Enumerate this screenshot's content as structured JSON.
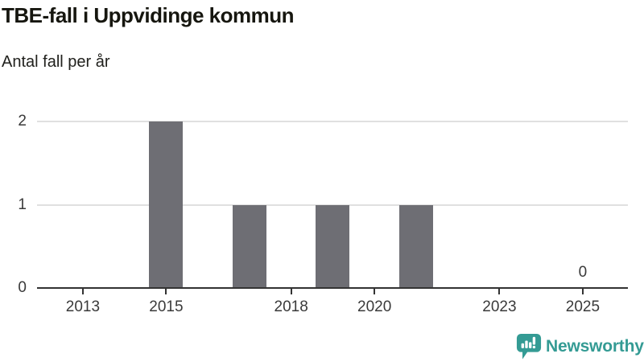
{
  "header": {
    "title": "TBE-fall i Uppvidinge kommun",
    "subtitle": "Antal fall per år"
  },
  "chart_data": {
    "type": "bar",
    "title": "TBE-fall i Uppvidinge kommun",
    "subtitle": "Antal fall per år",
    "categories": [
      "2012",
      "2013",
      "2014",
      "2015",
      "2016",
      "2017",
      "2018",
      "2019",
      "2020",
      "2021",
      "2022",
      "2023",
      "2024",
      "2025"
    ],
    "values": [
      0,
      0,
      0,
      2,
      0,
      1,
      0,
      1,
      0,
      1,
      0,
      0,
      0,
      0
    ],
    "xlabel": "",
    "ylabel": "Antal fall per år",
    "ylim": [
      0,
      2
    ],
    "yticks": [
      0,
      1,
      2
    ],
    "x_tick_years": [
      "2013",
      "2015",
      "2018",
      "2020",
      "2023",
      "2025"
    ],
    "grid": "horizontal-only",
    "legend": "none",
    "annotations": [
      {
        "category": "2025",
        "label": "0"
      }
    ]
  },
  "colors": {
    "bar": "#6e6e74",
    "gridline": "#e0e0e0",
    "axis": "#333333",
    "tick_text": "#3a3a3a",
    "title_text": "#16160f",
    "brand_teal": "#349b94"
  },
  "footer": {
    "brand": "Newsworthy"
  }
}
